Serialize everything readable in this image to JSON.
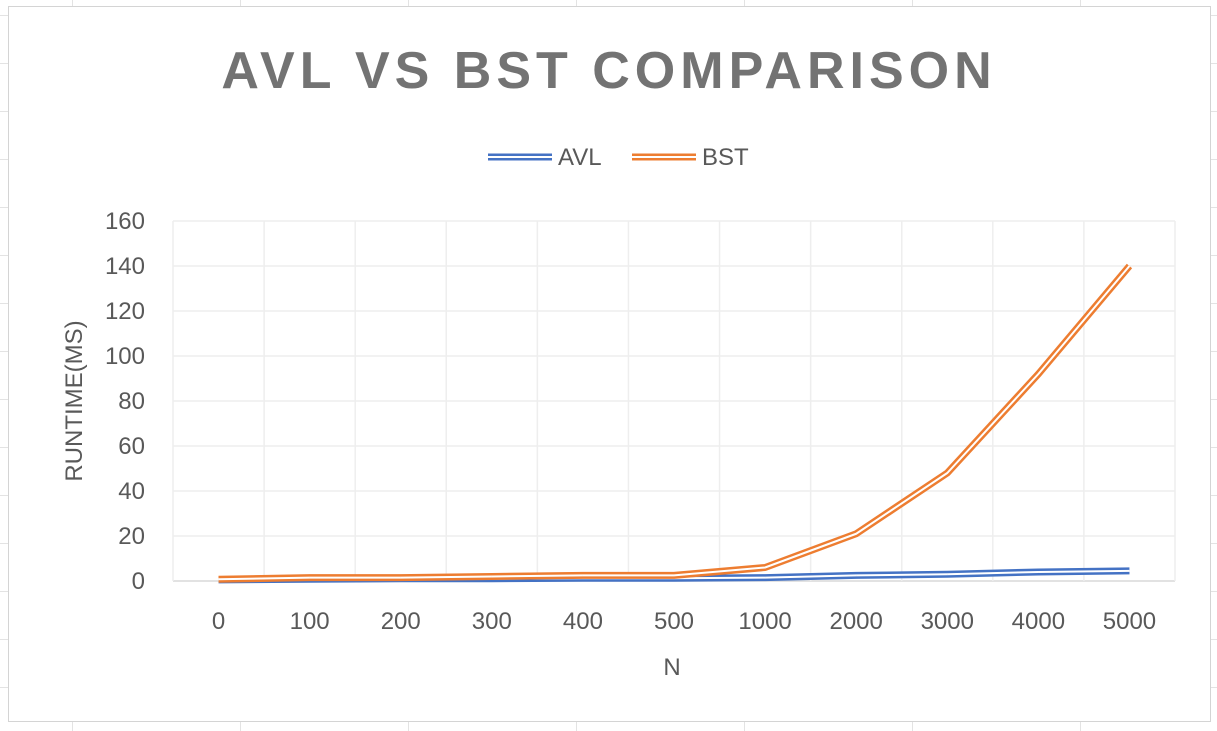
{
  "chart_data": {
    "type": "line",
    "title": "AVL VS BST COMPARISON",
    "xlabel": "N",
    "ylabel": "RUNTIME(MS)",
    "categories": [
      "0",
      "100",
      "200",
      "300",
      "400",
      "500",
      "1000",
      "2000",
      "3000",
      "4000",
      "5000"
    ],
    "ylim": [
      0,
      160
    ],
    "yticks": [
      "0",
      "20",
      "40",
      "60",
      "80",
      "100",
      "120",
      "140",
      "160"
    ],
    "grid": true,
    "legend_position": "top",
    "series": [
      {
        "name": "AVL",
        "color": "#4472c4",
        "values": [
          0.5,
          0.8,
          1,
          1,
          1.2,
          1.2,
          1.5,
          2.5,
          3,
          4,
          4.5
        ]
      },
      {
        "name": "BST",
        "color": "#ed7d31",
        "values": [
          0.8,
          1.5,
          1.5,
          2,
          2.5,
          2.5,
          6,
          21,
          48,
          92,
          140
        ]
      }
    ]
  }
}
